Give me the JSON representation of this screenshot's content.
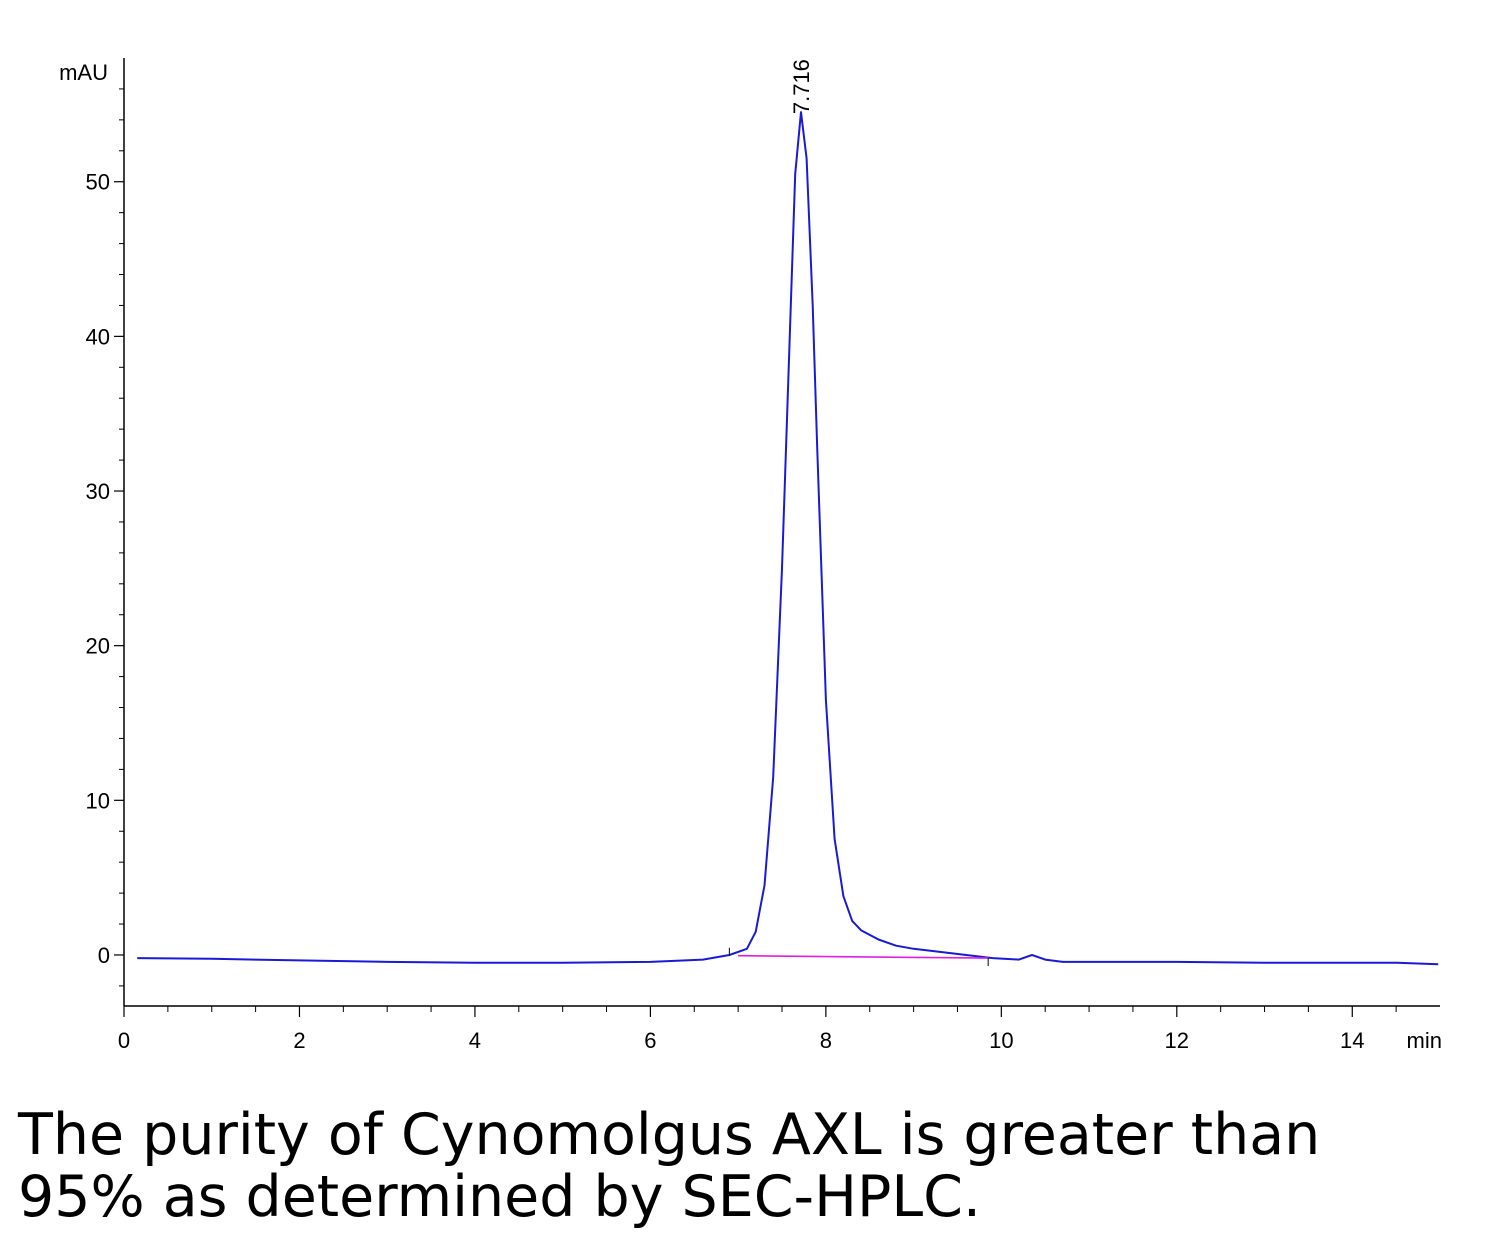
{
  "chart_data": {
    "type": "line",
    "title": "",
    "ylabel": "mAU",
    "xlabel": "min",
    "xlim": [
      0,
      15
    ],
    "ylim": [
      -3.3,
      58
    ],
    "x_ticks": [
      0,
      2,
      4,
      6,
      8,
      10,
      12,
      14
    ],
    "y_ticks": [
      0,
      10,
      20,
      30,
      40,
      50
    ],
    "x_tick_labels": [
      "0",
      "2",
      "4",
      "6",
      "8",
      "10",
      "12",
      "14"
    ],
    "y_tick_labels": [
      "0",
      "10",
      "20",
      "30",
      "40",
      "50"
    ],
    "grid": false,
    "series": [
      {
        "color": "#1a1ad6",
        "x": [
          0.15,
          1.0,
          2.0,
          3.0,
          4.0,
          5.0,
          6.0,
          6.6,
          6.9,
          7.1,
          7.2,
          7.3,
          7.4,
          7.5,
          7.6,
          7.65,
          7.716,
          7.78,
          7.85,
          7.9,
          8.0,
          8.1,
          8.2,
          8.3,
          8.4,
          8.6,
          8.8,
          9.0,
          9.3,
          9.6,
          9.9,
          10.2,
          10.35,
          10.5,
          10.7,
          11.0,
          12.0,
          13.0,
          14.0,
          14.5,
          14.98
        ],
        "y": [
          -0.2,
          -0.25,
          -0.35,
          -0.45,
          -0.5,
          -0.5,
          -0.45,
          -0.3,
          0.0,
          0.4,
          1.5,
          4.5,
          11.5,
          25.0,
          42.0,
          50.5,
          54.5,
          51.5,
          42.0,
          33.0,
          16.5,
          7.5,
          3.8,
          2.2,
          1.6,
          1.0,
          0.6,
          0.4,
          0.2,
          0.0,
          -0.2,
          -0.3,
          0.0,
          -0.3,
          -0.45,
          -0.45,
          -0.45,
          -0.5,
          -0.5,
          -0.5,
          -0.6
        ]
      },
      {
        "name": "baseline",
        "color": "#e020e0",
        "x": [
          7.0,
          9.85
        ],
        "y": [
          -0.05,
          -0.2
        ]
      }
    ],
    "annotations": [
      {
        "text": "7.716",
        "x": 7.716,
        "y": 54.5
      }
    ]
  },
  "caption": {
    "line1": "The purity of Cynomolgus AXL is greater than",
    "line2": "95% as determined by SEC-HPLC."
  }
}
